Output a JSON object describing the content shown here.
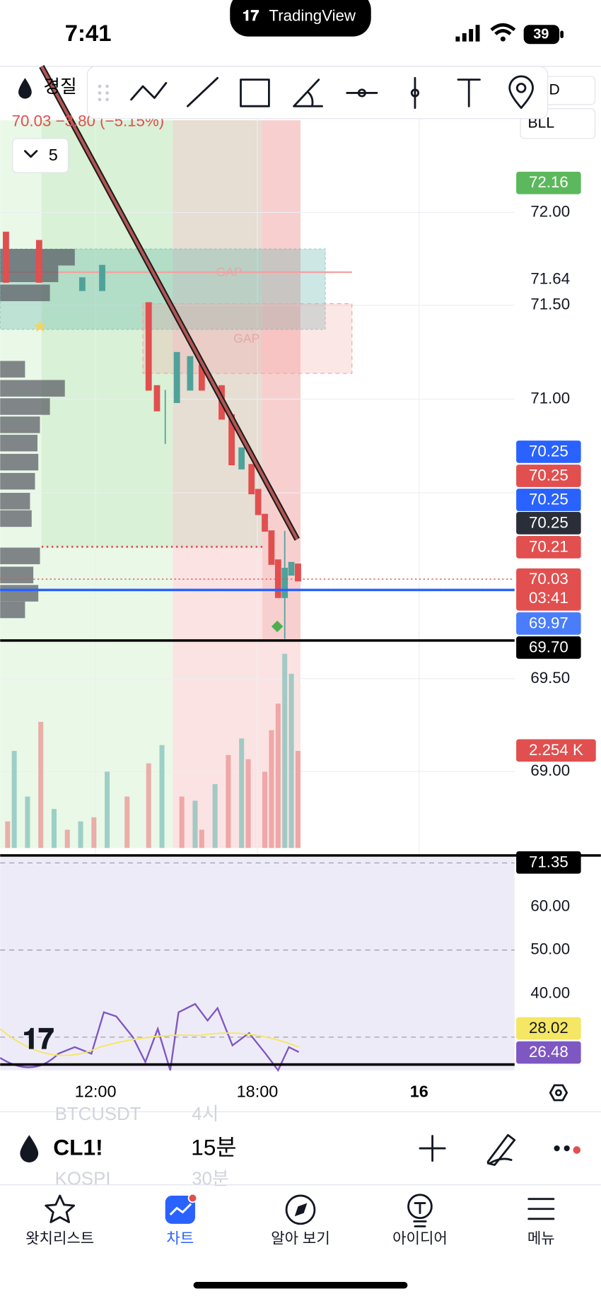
{
  "status": {
    "time": "7:41",
    "app": "TradingView",
    "battery": "39"
  },
  "symbol": {
    "name": "경질",
    "change": "70.03 −3.80 (−5.15%)",
    "indicator_count": "5",
    "interval_short": "D",
    "indicator_short": "BLL"
  },
  "overlays": {
    "gap_1": "GAP",
    "gap_2": "GAP"
  },
  "price_axis": {
    "last_green": "72.16",
    "p72": "72.00",
    "p7164": "71.64",
    "p715": "71.50",
    "p71": "71.00",
    "blue_1": "70.25",
    "red_1": "70.25",
    "blue_2": "70.25",
    "dark_1": "70.25",
    "red_2": "70.21",
    "last_price": "70.03",
    "countdown": "03:41",
    "blue_3": "69.97",
    "black_1": "69.70",
    "p695": "69.50",
    "volume": "2.254 K",
    "p69": "69.00"
  },
  "rsi_axis": {
    "top": "71.35",
    "r60": "60.00",
    "r50": "50.00",
    "r40": "40.00",
    "ma": "28.02",
    "rsi": "26.48"
  },
  "time_axis": [
    "12:00",
    "18:00",
    "16"
  ],
  "bottom_bar": {
    "symbol": "CL1!",
    "interval": "15분",
    "ghost_symbol_1": "BTCUSDT",
    "ghost_interval_1": "4시",
    "ghost_symbol_2": "KOSPI",
    "ghost_interval_2": "30분"
  },
  "nav": [
    "왓치리스트",
    "차트",
    "알아 보기",
    "아이디어",
    "메뉴"
  ]
}
